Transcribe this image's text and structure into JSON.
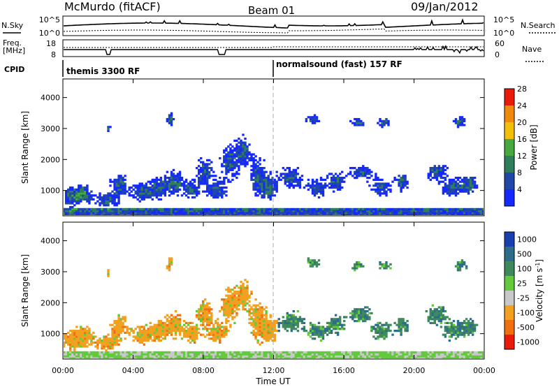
{
  "header": {
    "station": "McMurdo (fitACF)",
    "beam": "Beam 01",
    "date": "09/Jan/2012"
  },
  "status_panels": {
    "nsky_label": "N.Sky",
    "nsky_top": "10^5",
    "nsky_bottom": "10^0",
    "nsearch_label": "N.Search",
    "nsearch_top": "10^5",
    "nsearch_bottom": "10^0",
    "freq_label": "Freq.",
    "freq_unit": "[MHz]",
    "freq_top": "18",
    "freq_bottom": "8",
    "nave_label": "Nave",
    "nave_top": "60",
    "nave_bottom": "0",
    "cpid_label": "CPID",
    "cpid_segments": [
      {
        "label": "themis 3300 RF",
        "start_hour": 0
      },
      {
        "label": "normalsound (fast) 157 RF",
        "start_hour": 12
      }
    ]
  },
  "chart_data": [
    {
      "type": "heatmap",
      "name": "power",
      "ylabel": "Slant Range [km]",
      "x_range_hours": [
        0,
        24
      ],
      "ylim": [
        180,
        4600
      ],
      "yticks": [
        1000,
        2000,
        3000,
        4000
      ],
      "colorbar": {
        "label": "Power [dB]",
        "ticks": [
          "4",
          "8",
          "12",
          "16",
          "20",
          "24",
          "28"
        ],
        "colors": [
          "#1428ff",
          "#2147a8",
          "#2e7d5b",
          "#45a840",
          "#f2c00a",
          "#f08a0a",
          "#e81a0a"
        ]
      }
    },
    {
      "type": "heatmap",
      "name": "velocity",
      "ylabel": "Slant Range [km]",
      "xlabel": "Time UT",
      "x_range_hours": [
        0,
        24
      ],
      "xticks": [
        "00:00",
        "04:00",
        "08:00",
        "12:00",
        "16:00",
        "20:00",
        "00:00"
      ],
      "ylim": [
        180,
        4600
      ],
      "yticks": [
        1000,
        2000,
        3000,
        4000
      ],
      "colorbar": {
        "label": "Velocity [m s^-1]",
        "ticks": [
          "1000",
          "500",
          "100",
          "25",
          "-25",
          "-100",
          "-500",
          "-1000"
        ],
        "colors": [
          "#1a3fb0",
          "#2d6d8a",
          "#3f8a5c",
          "#63c93d",
          "#c8c8c8",
          "#f2a020",
          "#f07010",
          "#e81a0a"
        ]
      }
    }
  ]
}
